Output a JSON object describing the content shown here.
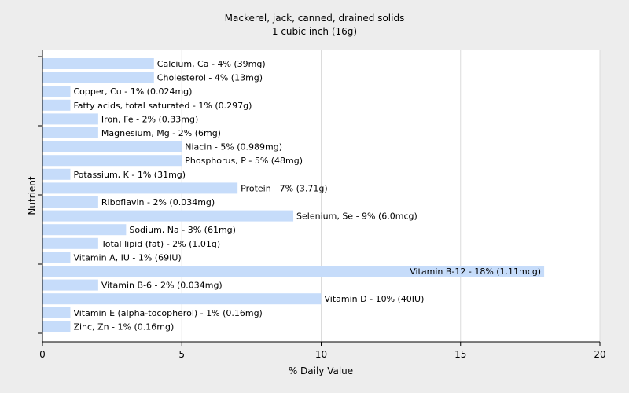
{
  "chart_data": {
    "type": "bar",
    "orientation": "horizontal",
    "title": "Mackerel, jack, canned, drained solids",
    "subtitle": "1 cubic inch (16g)",
    "xlabel": "% Daily Value",
    "ylabel": "Nutrient",
    "xlim": [
      0,
      20
    ],
    "xticks": [
      0,
      5,
      10,
      15,
      20
    ],
    "grid": "vertical",
    "bar_color": "#c6dcfa",
    "categories": [
      "Calcium, Ca",
      "Cholesterol",
      "Copper, Cu",
      "Fatty acids, total saturated",
      "Iron, Fe",
      "Magnesium, Mg",
      "Niacin",
      "Phosphorus, P",
      "Potassium, K",
      "Protein",
      "Riboflavin",
      "Selenium, Se",
      "Sodium, Na",
      "Total lipid (fat)",
      "Vitamin A, IU",
      "Vitamin B-12",
      "Vitamin B-6",
      "Vitamin D",
      "Vitamin E (alpha-tocopherol)",
      "Zinc, Zn"
    ],
    "values": [
      4,
      4,
      1,
      1,
      2,
      2,
      5,
      5,
      1,
      7,
      2,
      9,
      3,
      2,
      1,
      18,
      2,
      10,
      1,
      1
    ],
    "labels": [
      "Calcium, Ca - 4% (39mg)",
      "Cholesterol - 4% (13mg)",
      "Copper, Cu - 1% (0.024mg)",
      "Fatty acids, total saturated - 1% (0.297g)",
      "Iron, Fe - 2% (0.33mg)",
      "Magnesium, Mg - 2% (6mg)",
      "Niacin - 5% (0.989mg)",
      "Phosphorus, P - 5% (48mg)",
      "Potassium, K - 1% (31mg)",
      "Protein - 7% (3.71g)",
      "Riboflavin - 2% (0.034mg)",
      "Selenium, Se - 9% (6.0mcg)",
      "Sodium, Na - 3% (61mg)",
      "Total lipid (fat) - 2% (1.01g)",
      "Vitamin A, IU - 1% (69IU)",
      "Vitamin B-12 - 18% (1.11mcg)",
      "Vitamin B-6 - 2% (0.034mg)",
      "Vitamin D - 10% (40IU)",
      "Vitamin E (alpha-tocopherol) - 1% (0.16mg)",
      "Zinc, Zn - 1% (0.16mg)"
    ]
  }
}
